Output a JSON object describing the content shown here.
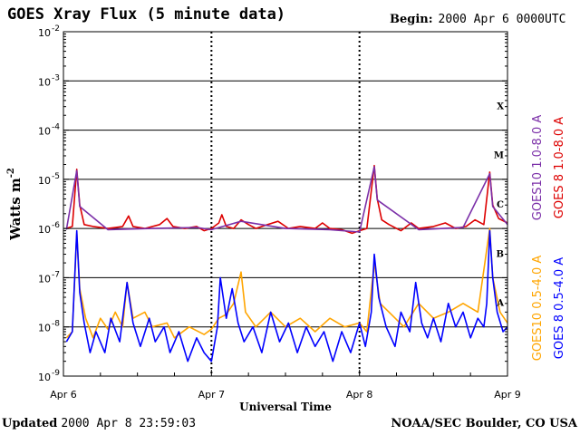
{
  "header": {
    "title": "GOES Xray Flux (5 minute data)",
    "begin_label": "Begin:",
    "begin_value": "2000 Apr 6 0000UTC"
  },
  "footer": {
    "updated_label": "Updated",
    "updated_value": "2000 Apr  8 23:59:03",
    "credit": "NOAA/SEC Boulder, CO USA"
  },
  "colors": {
    "goes8_long": "#dd0000",
    "goes10_long": "#7b2fa8",
    "goes8_short": "#0000ff",
    "goes10_short": "#ffa500"
  },
  "chart_data": {
    "type": "line",
    "xlabel": "Universal Time",
    "ylabel": "Watts m",
    "ylabel_sup": "-2",
    "yscale": "log",
    "ylim": [
      1e-09,
      0.01
    ],
    "xlim": [
      0,
      3
    ],
    "x_unit": "days since 2000 Apr 6 00:00 UTC",
    "x_ticks": [
      {
        "x": 0,
        "label": "Apr 6"
      },
      {
        "x": 1,
        "label": "Apr 7"
      },
      {
        "x": 2,
        "label": "Apr 8"
      },
      {
        "x": 3,
        "label": "Apr 9"
      }
    ],
    "y_ticks": [
      {
        "exp": -9,
        "base": "10",
        "sup": "-9"
      },
      {
        "exp": -8,
        "base": "10",
        "sup": "-8"
      },
      {
        "exp": -7,
        "base": "10",
        "sup": "-7"
      },
      {
        "exp": -6,
        "base": "10",
        "sup": "-6"
      },
      {
        "exp": -5,
        "base": "10",
        "sup": "-5"
      },
      {
        "exp": -4,
        "base": "10",
        "sup": "-4"
      },
      {
        "exp": -3,
        "base": "10",
        "sup": "-3"
      },
      {
        "exp": -2,
        "base": "10",
        "sup": "-2"
      }
    ],
    "flare_classes": [
      {
        "label": "A",
        "exp": -7.5
      },
      {
        "label": "B",
        "exp": -6.5
      },
      {
        "label": "C",
        "exp": -5.5
      },
      {
        "label": "M",
        "exp": -4.5
      },
      {
        "label": "X",
        "exp": -3.5
      }
    ],
    "grid": {
      "horizontal_lines_at_exp": [
        -8,
        -7,
        -6,
        -5,
        -4,
        -3
      ],
      "dotted_day_lines": true
    },
    "legend": [
      {
        "label": "GOES10 1.0-8.0 A",
        "color": "#7b2fa8"
      },
      {
        "label": "GOES 8 1.0-8.0 A",
        "color": "#dd0000"
      },
      {
        "label": "GOES10 0.5-4.0 A",
        "color": "#ffa500"
      },
      {
        "label": "GOES 8 0.5-4.0 A",
        "color": "#0000ff"
      }
    ],
    "series": [
      {
        "name": "GOES 8 1.0-8.0 A",
        "color": "#dd0000",
        "points": [
          [
            0.02,
            1e-06
          ],
          [
            0.06,
            1.1e-06
          ],
          [
            0.09,
            1.6e-05
          ],
          [
            0.11,
            3e-06
          ],
          [
            0.14,
            1.2e-06
          ],
          [
            0.2,
            1.1e-06
          ],
          [
            0.3,
            1e-06
          ],
          [
            0.4,
            1.1e-06
          ],
          [
            0.44,
            1.8e-06
          ],
          [
            0.47,
            1.1e-06
          ],
          [
            0.55,
            1e-06
          ],
          [
            0.65,
            1.2e-06
          ],
          [
            0.7,
            1.6e-06
          ],
          [
            0.74,
            1.1e-06
          ],
          [
            0.82,
            1e-06
          ],
          [
            0.9,
            1.1e-06
          ],
          [
            0.95,
            9e-07
          ],
          [
            1.0,
            1e-06
          ],
          [
            1.05,
            1.3e-06
          ],
          [
            1.07,
            1.9e-06
          ],
          [
            1.1,
            1.1e-06
          ],
          [
            1.15,
            1e-06
          ],
          [
            1.2,
            1.5e-06
          ],
          [
            1.25,
            1.2e-06
          ],
          [
            1.3,
            1e-06
          ],
          [
            1.38,
            1.2e-06
          ],
          [
            1.45,
            1.4e-06
          ],
          [
            1.52,
            1e-06
          ],
          [
            1.6,
            1.1e-06
          ],
          [
            1.7,
            1e-06
          ],
          [
            1.75,
            1.3e-06
          ],
          [
            1.8,
            1e-06
          ],
          [
            1.88,
            9.5e-07
          ],
          [
            1.95,
            8e-07
          ],
          [
            2.0,
            9e-07
          ],
          [
            2.05,
            1e-06
          ],
          [
            2.1,
            1.9e-05
          ],
          [
            2.12,
            4e-06
          ],
          [
            2.15,
            1.5e-06
          ],
          [
            2.2,
            1.2e-06
          ],
          [
            2.28,
            9e-07
          ],
          [
            2.35,
            1.3e-06
          ],
          [
            2.4,
            1e-06
          ],
          [
            2.5,
            1.1e-06
          ],
          [
            2.58,
            1.3e-06
          ],
          [
            2.65,
            1e-06
          ],
          [
            2.72,
            1.1e-06
          ],
          [
            2.78,
            1.5e-06
          ],
          [
            2.84,
            1.2e-06
          ],
          [
            2.88,
            1.4e-05
          ],
          [
            2.9,
            3e-06
          ],
          [
            2.94,
            1.6e-06
          ],
          [
            3.0,
            1.3e-06
          ]
        ]
      },
      {
        "name": "GOES10 1.0-8.0 A",
        "color": "#7b2fa8",
        "points": [
          [
            0.02,
            9.5e-07
          ],
          [
            0.09,
            1.5e-05
          ],
          [
            0.11,
            2.8e-06
          ],
          [
            0.3,
            9.5e-07
          ],
          [
            0.6,
            1e-06
          ],
          [
            0.9,
            1.05e-06
          ],
          [
            1.0,
            9.5e-07
          ],
          [
            1.2,
            1.4e-06
          ],
          [
            1.5,
            1e-06
          ],
          [
            1.8,
            9.5e-07
          ],
          [
            2.0,
            8.5e-07
          ],
          [
            2.1,
            1.8e-05
          ],
          [
            2.12,
            3.8e-06
          ],
          [
            2.4,
            9.5e-07
          ],
          [
            2.7,
            1.05e-06
          ],
          [
            2.88,
            1.3e-05
          ],
          [
            2.9,
            2.8e-06
          ],
          [
            3.0,
            1.2e-06
          ]
        ]
      },
      {
        "name": "GOES10 0.5-4.0 A",
        "color": "#ffa500",
        "points": [
          [
            0.02,
            6e-09
          ],
          [
            0.06,
            8e-09
          ],
          [
            0.09,
            8e-07
          ],
          [
            0.11,
            6e-08
          ],
          [
            0.15,
            1.5e-08
          ],
          [
            0.2,
            6e-09
          ],
          [
            0.25,
            1.5e-08
          ],
          [
            0.3,
            9e-09
          ],
          [
            0.35,
            2e-08
          ],
          [
            0.4,
            1e-08
          ],
          [
            0.43,
            8e-08
          ],
          [
            0.47,
            1.5e-08
          ],
          [
            0.55,
            2e-08
          ],
          [
            0.6,
            1e-08
          ],
          [
            0.7,
            1.2e-08
          ],
          [
            0.75,
            6e-09
          ],
          [
            0.85,
            1e-08
          ],
          [
            0.95,
            7e-09
          ],
          [
            1.0,
            9e-09
          ],
          [
            1.05,
            1.5e-08
          ],
          [
            1.1,
            1.8e-08
          ],
          [
            1.15,
            3e-08
          ],
          [
            1.2,
            1.3e-07
          ],
          [
            1.23,
            2e-08
          ],
          [
            1.3,
            1e-08
          ],
          [
            1.4,
            2e-08
          ],
          [
            1.5,
            1e-08
          ],
          [
            1.6,
            1.5e-08
          ],
          [
            1.7,
            8e-09
          ],
          [
            1.8,
            1.5e-08
          ],
          [
            1.9,
            1e-08
          ],
          [
            2.0,
            1.2e-08
          ],
          [
            2.05,
            8e-09
          ],
          [
            2.1,
            2e-07
          ],
          [
            2.14,
            3e-08
          ],
          [
            2.2,
            2e-08
          ],
          [
            2.3,
            1e-08
          ],
          [
            2.4,
            3e-08
          ],
          [
            2.5,
            1.5e-08
          ],
          [
            2.6,
            2e-08
          ],
          [
            2.7,
            3e-08
          ],
          [
            2.8,
            2e-08
          ],
          [
            2.88,
            1e-06
          ],
          [
            2.9,
            1e-07
          ],
          [
            2.95,
            2e-08
          ],
          [
            3.0,
            1.2e-08
          ]
        ]
      },
      {
        "name": "GOES 8 0.5-4.0 A",
        "color": "#0000ff",
        "points": [
          [
            0.02,
            5e-09
          ],
          [
            0.06,
            8e-09
          ],
          [
            0.09,
            9e-07
          ],
          [
            0.11,
            5e-08
          ],
          [
            0.14,
            1.2e-08
          ],
          [
            0.18,
            3e-09
          ],
          [
            0.22,
            8e-09
          ],
          [
            0.28,
            3e-09
          ],
          [
            0.32,
            1.5e-08
          ],
          [
            0.38,
            5e-09
          ],
          [
            0.43,
            8e-08
          ],
          [
            0.47,
            1.2e-08
          ],
          [
            0.52,
            4e-09
          ],
          [
            0.58,
            1.5e-08
          ],
          [
            0.62,
            5e-09
          ],
          [
            0.68,
            1e-08
          ],
          [
            0.72,
            3e-09
          ],
          [
            0.78,
            8e-09
          ],
          [
            0.84,
            2e-09
          ],
          [
            0.9,
            6e-09
          ],
          [
            0.95,
            3e-09
          ],
          [
            1.0,
            2e-09
          ],
          [
            1.04,
            1e-08
          ],
          [
            1.06,
            1e-07
          ],
          [
            1.1,
            1.5e-08
          ],
          [
            1.14,
            6e-08
          ],
          [
            1.18,
            1.2e-08
          ],
          [
            1.22,
            5e-09
          ],
          [
            1.28,
            1e-08
          ],
          [
            1.34,
            3e-09
          ],
          [
            1.4,
            2e-08
          ],
          [
            1.46,
            5e-09
          ],
          [
            1.52,
            1.2e-08
          ],
          [
            1.58,
            3e-09
          ],
          [
            1.64,
            1e-08
          ],
          [
            1.7,
            4e-09
          ],
          [
            1.76,
            8e-09
          ],
          [
            1.82,
            2e-09
          ],
          [
            1.88,
            8e-09
          ],
          [
            1.94,
            3e-09
          ],
          [
            2.0,
            1.2e-08
          ],
          [
            2.04,
            4e-09
          ],
          [
            2.08,
            2e-08
          ],
          [
            2.1,
            3e-07
          ],
          [
            2.13,
            4e-08
          ],
          [
            2.18,
            1e-08
          ],
          [
            2.24,
            4e-09
          ],
          [
            2.28,
            2e-08
          ],
          [
            2.34,
            8e-09
          ],
          [
            2.38,
            8e-08
          ],
          [
            2.42,
            1.2e-08
          ],
          [
            2.46,
            6e-09
          ],
          [
            2.5,
            1.5e-08
          ],
          [
            2.55,
            5e-09
          ],
          [
            2.6,
            3e-08
          ],
          [
            2.65,
            1e-08
          ],
          [
            2.7,
            2e-08
          ],
          [
            2.75,
            6e-09
          ],
          [
            2.8,
            1.5e-08
          ],
          [
            2.84,
            1e-08
          ],
          [
            2.86,
            3e-08
          ],
          [
            2.88,
            9e-07
          ],
          [
            2.9,
            1e-07
          ],
          [
            2.93,
            2e-08
          ],
          [
            2.97,
            8e-09
          ],
          [
            3.0,
            1e-08
          ]
        ]
      }
    ]
  }
}
